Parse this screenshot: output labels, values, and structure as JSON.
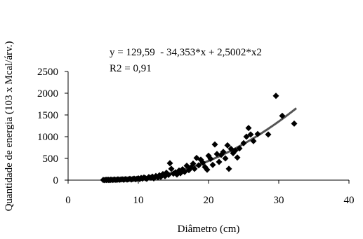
{
  "chart_data": {
    "type": "scatter",
    "title": "",
    "xlabel": "Diâmetro (cm)",
    "ylabel": "Quantidade de energia (103 x Mcal/árv.)",
    "xlim": [
      0,
      40
    ],
    "ylim": [
      0,
      2500
    ],
    "x_ticks": [
      0,
      10,
      20,
      30,
      40
    ],
    "y_ticks": [
      0,
      500,
      1000,
      1500,
      2000,
      2500
    ],
    "grid": false,
    "legend": "none",
    "annotations": {
      "equation": "y = 129,59  - 34,353*x + 2,5002*x2",
      "r2": "R2 = 0,91"
    },
    "trendline": {
      "type": "polynomial",
      "coefficients": [
        129.59,
        -34.353,
        2.5002
      ],
      "x_range": [
        5,
        32.5
      ]
    },
    "marker_color": "#000000",
    "trend_color": "#555555",
    "points": [
      [
        5,
        5
      ],
      [
        5.2,
        0
      ],
      [
        5.4,
        8
      ],
      [
        5.5,
        3
      ],
      [
        5.7,
        10
      ],
      [
        5.8,
        2
      ],
      [
        6,
        5
      ],
      [
        6.1,
        12
      ],
      [
        6.3,
        4
      ],
      [
        6.5,
        8
      ],
      [
        6.6,
        15
      ],
      [
        6.8,
        6
      ],
      [
        7,
        10
      ],
      [
        7.1,
        18
      ],
      [
        7.3,
        8
      ],
      [
        7.5,
        14
      ],
      [
        7.7,
        20
      ],
      [
        7.9,
        10
      ],
      [
        8,
        16
      ],
      [
        8.2,
        25
      ],
      [
        8.4,
        12
      ],
      [
        8.6,
        20
      ],
      [
        8.8,
        30
      ],
      [
        9,
        15
      ],
      [
        9.2,
        25
      ],
      [
        9.4,
        35
      ],
      [
        9.6,
        20
      ],
      [
        9.8,
        30
      ],
      [
        10,
        40
      ],
      [
        10.2,
        25
      ],
      [
        10.4,
        50
      ],
      [
        10.6,
        35
      ],
      [
        10.8,
        60
      ],
      [
        11,
        45
      ],
      [
        11.2,
        30
      ],
      [
        11.5,
        70
      ],
      [
        11.8,
        55
      ],
      [
        12,
        80
      ],
      [
        12.2,
        40
      ],
      [
        12.5,
        95
      ],
      [
        12.8,
        60
      ],
      [
        13,
        110
      ],
      [
        13.2,
        75
      ],
      [
        13.5,
        140
      ],
      [
        13.8,
        90
      ],
      [
        14,
        170
      ],
      [
        14.3,
        120
      ],
      [
        14.5,
        390
      ],
      [
        14.7,
        260
      ],
      [
        15,
        150
      ],
      [
        15.3,
        180
      ],
      [
        15.5,
        130
      ],
      [
        15.8,
        220
      ],
      [
        16,
        160
      ],
      [
        16.3,
        250
      ],
      [
        16.6,
        190
      ],
      [
        16.9,
        330
      ],
      [
        17.2,
        230
      ],
      [
        17.5,
        290
      ],
      [
        17.8,
        380
      ],
      [
        18,
        260
      ],
      [
        18.3,
        510
      ],
      [
        18.6,
        340
      ],
      [
        18.9,
        470
      ],
      [
        19.2,
        400
      ],
      [
        19.5,
        300
      ],
      [
        19.8,
        240
      ],
      [
        20,
        560
      ],
      [
        20.3,
        490
      ],
      [
        20.6,
        350
      ],
      [
        20.9,
        820
      ],
      [
        21.2,
        600
      ],
      [
        21.5,
        420
      ],
      [
        21.8,
        580
      ],
      [
        22.1,
        650
      ],
      [
        22.4,
        500
      ],
      [
        22.7,
        800
      ],
      [
        22.9,
        260
      ],
      [
        23.2,
        720
      ],
      [
        23.5,
        620
      ],
      [
        23.8,
        680
      ],
      [
        24.1,
        520
      ],
      [
        24.4,
        730
      ],
      [
        25,
        850
      ],
      [
        25.4,
        1000
      ],
      [
        25.7,
        1200
      ],
      [
        26,
        1050
      ],
      [
        26.4,
        900
      ],
      [
        27,
        1060
      ],
      [
        28.5,
        1050
      ],
      [
        29.6,
        1940
      ],
      [
        30.5,
        1480
      ],
      [
        32.2,
        1300
      ]
    ]
  }
}
